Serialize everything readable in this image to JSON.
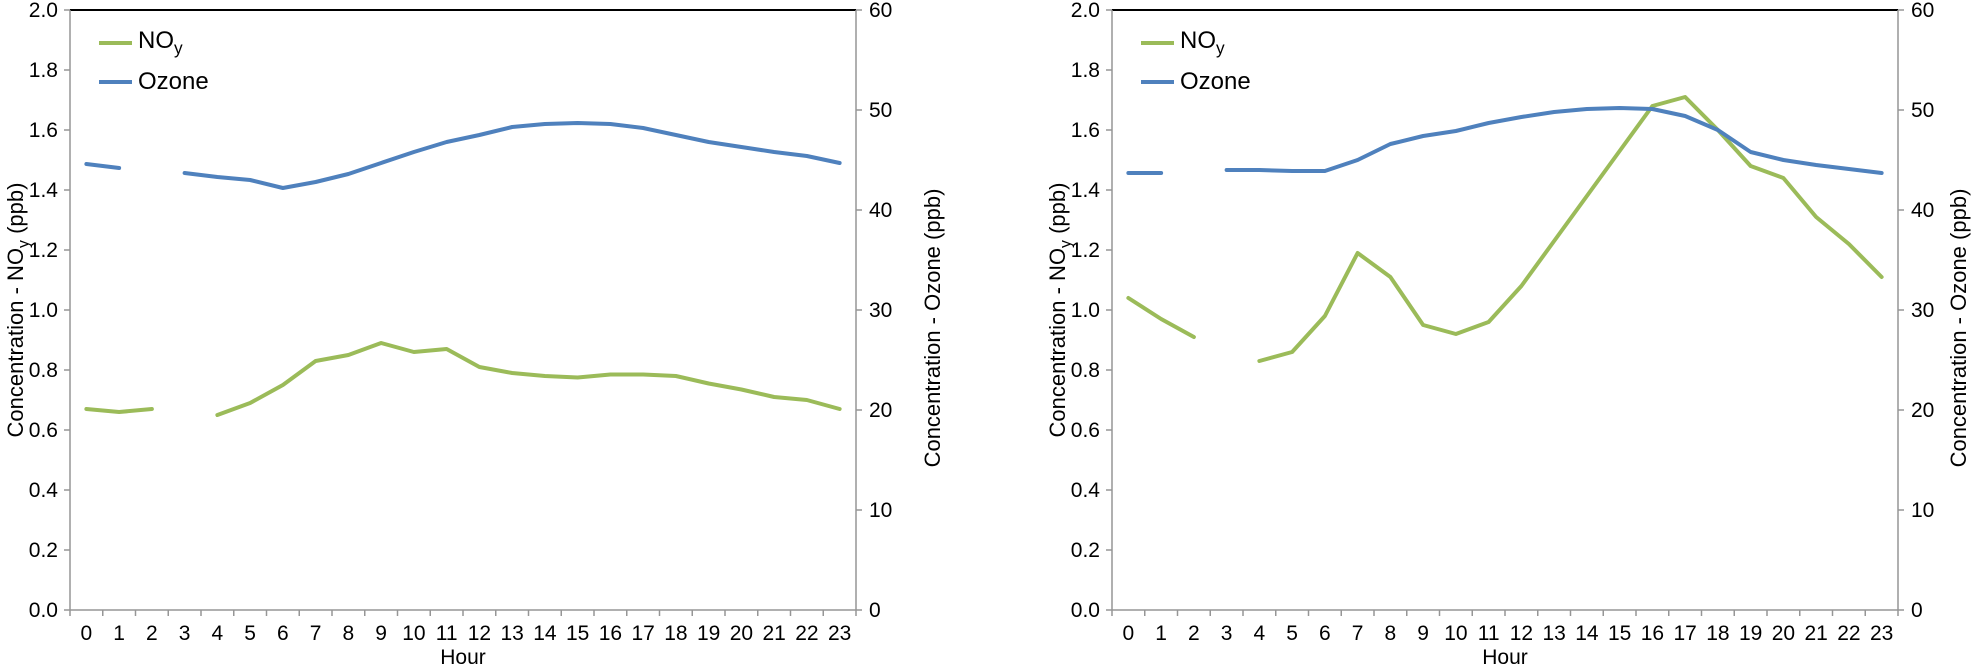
{
  "colors": {
    "noy_green": "#9BBB59",
    "ozone_blue": "#4F81BD",
    "axis_gray": "#969696",
    "plot_top_border": "#000000",
    "text": "#000000",
    "background": "#FFFFFF"
  },
  "chart_data": [
    {
      "panel": "left",
      "type": "line",
      "xlabel": "Hour",
      "ylabel_left_pre": "Concentration - NO",
      "ylabel_left_sub": "y",
      "ylabel_left_post": " (ppb)",
      "ylabel_right": "Concentration - Ozone (ppb)",
      "grid": false,
      "legend_position": "top-left-inside",
      "x_ticks": [
        "0",
        "1",
        "2",
        "3",
        "4",
        "5",
        "6",
        "7",
        "8",
        "9",
        "10",
        "11",
        "12",
        "13",
        "14",
        "15",
        "16",
        "17",
        "18",
        "19",
        "20",
        "21",
        "22",
        "23"
      ],
      "y_left_ticks": [
        "0.0",
        "0.2",
        "0.4",
        "0.6",
        "0.8",
        "1.0",
        "1.2",
        "1.4",
        "1.6",
        "1.8",
        "2.0"
      ],
      "y_right_ticks": [
        "0",
        "10",
        "20",
        "30",
        "40",
        "50",
        "60"
      ],
      "y_left_range": [
        0,
        2.0
      ],
      "y_right_range": [
        0,
        60
      ],
      "categories": [
        0,
        1,
        2,
        3,
        4,
        5,
        6,
        7,
        8,
        9,
        10,
        11,
        12,
        13,
        14,
        15,
        16,
        17,
        18,
        19,
        20,
        21,
        22,
        23
      ],
      "series": [
        {
          "name": "NOy",
          "name_main": "NO",
          "name_sub": "y",
          "axis": "left",
          "unit": "ppb",
          "color": "#9BBB59",
          "values": [
            0.67,
            0.66,
            0.67,
            null,
            0.65,
            0.69,
            0.75,
            0.83,
            0.85,
            0.89,
            0.86,
            0.87,
            0.81,
            0.79,
            0.78,
            0.775,
            0.785,
            0.785,
            0.78,
            0.755,
            0.735,
            0.71,
            0.7,
            0.67
          ]
        },
        {
          "name": "Ozone",
          "name_main": "Ozone",
          "name_sub": "",
          "axis": "right",
          "unit": "ppb",
          "color": "#4F81BD",
          "values": [
            44.6,
            44.2,
            null,
            43.7,
            43.3,
            43.0,
            42.2,
            42.8,
            43.6,
            44.7,
            45.8,
            46.8,
            47.5,
            48.3,
            48.6,
            48.7,
            48.6,
            48.2,
            47.5,
            46.8,
            46.3,
            45.8,
            45.4,
            44.7
          ]
        }
      ]
    },
    {
      "panel": "right",
      "type": "line",
      "xlabel": "Hour",
      "ylabel_left_pre": "Concentration - NO",
      "ylabel_left_sub": "y",
      "ylabel_left_post": " (ppb)",
      "ylabel_right": "Concentration - Ozone (ppb)",
      "grid": false,
      "legend_position": "top-left-inside",
      "x_ticks": [
        "0",
        "1",
        "2",
        "3",
        "4",
        "5",
        "6",
        "7",
        "8",
        "9",
        "10",
        "11",
        "12",
        "13",
        "14",
        "15",
        "16",
        "17",
        "18",
        "19",
        "20",
        "21",
        "22",
        "23"
      ],
      "y_left_ticks": [
        "0.0",
        "0.2",
        "0.4",
        "0.6",
        "0.8",
        "1.0",
        "1.2",
        "1.4",
        "1.6",
        "1.8",
        "2.0"
      ],
      "y_right_ticks": [
        "0",
        "10",
        "20",
        "30",
        "40",
        "50",
        "60"
      ],
      "y_left_range": [
        0,
        2.0
      ],
      "y_right_range": [
        0,
        60
      ],
      "categories": [
        0,
        1,
        2,
        3,
        4,
        5,
        6,
        7,
        8,
        9,
        10,
        11,
        12,
        13,
        14,
        15,
        16,
        17,
        18,
        19,
        20,
        21,
        22,
        23
      ],
      "series": [
        {
          "name": "NOy",
          "name_main": "NO",
          "name_sub": "y",
          "axis": "left",
          "unit": "ppb",
          "color": "#9BBB59",
          "values": [
            1.04,
            0.97,
            0.91,
            null,
            0.83,
            0.86,
            0.98,
            1.19,
            1.11,
            0.95,
            0.92,
            0.96,
            1.08,
            1.23,
            1.38,
            1.53,
            1.68,
            1.71,
            1.6,
            1.48,
            1.44,
            1.31,
            1.22,
            1.11
          ]
        },
        {
          "name": "Ozone",
          "name_main": "Ozone",
          "name_sub": "",
          "axis": "right",
          "unit": "ppb",
          "color": "#4F81BD",
          "values": [
            43.7,
            43.7,
            null,
            44.0,
            44.0,
            43.9,
            43.9,
            45.0,
            46.6,
            47.4,
            47.9,
            48.7,
            49.3,
            49.8,
            50.1,
            50.2,
            50.1,
            49.4,
            48.0,
            45.8,
            45.0,
            44.5,
            44.1,
            43.7
          ]
        }
      ]
    }
  ]
}
